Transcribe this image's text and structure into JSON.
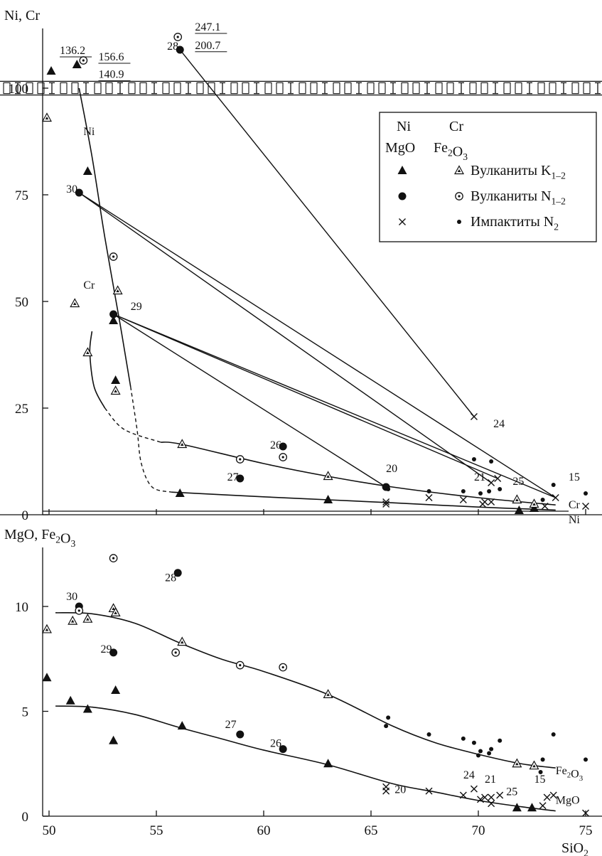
{
  "chart_data": [
    {
      "type": "scatter",
      "ylabel": "Ni, Cr",
      "xlim": [
        49.5,
        75.5
      ],
      "ylim": [
        0,
        110
      ],
      "yticks": [
        0,
        25,
        50,
        75,
        100
      ],
      "grid": false,
      "legend": {
        "placement": "top-right",
        "header_top": [
          "Ni",
          "Cr"
        ],
        "header_bottom": [
          "MgO",
          "Fe2O3"
        ],
        "entries": [
          {
            "label": "Вулканиты K1–2",
            "marker_a": "filled-triangle",
            "marker_b": "open-triangle"
          },
          {
            "label": "Вулканиты N1–2",
            "marker_a": "filled-circle",
            "marker_b": "open-circle"
          },
          {
            "label": "Импактиты N2",
            "marker_a": "cross",
            "marker_b": "small-dot"
          }
        ]
      },
      "series": [
        {
          "marker": "filled-triangle",
          "points": [
            [
              50.1,
              104
            ],
            [
              51.3,
              105.5
            ],
            [
              51.8,
              80.5
            ],
            [
              53.0,
              45.5
            ],
            [
              53.1,
              31.5
            ],
            [
              56.1,
              5
            ],
            [
              63.0,
              3.5
            ],
            [
              71.9,
              1
            ],
            [
              72.6,
              1.5
            ]
          ]
        },
        {
          "marker": "open-triangle",
          "points": [
            [
              49.9,
              93
            ],
            [
              51.2,
              49.5
            ],
            [
              51.8,
              38
            ],
            [
              53.1,
              29
            ],
            [
              53.2,
              52.5
            ],
            [
              56.2,
              16.5
            ],
            [
              63.0,
              9
            ],
            [
              71.8,
              3.5
            ],
            [
              72.6,
              2.5
            ]
          ]
        },
        {
          "marker": "filled-circle",
          "points": [
            [
              51.4,
              75.5
            ],
            [
              53.0,
              47
            ],
            [
              56.1,
              109
            ],
            [
              58.9,
              8.5
            ],
            [
              60.9,
              16
            ],
            [
              65.7,
              6.5
            ]
          ]
        },
        {
          "marker": "open-circle",
          "points": [
            [
              51.6,
              106.5
            ],
            [
              53.0,
              60.5
            ],
            [
              56.0,
              112
            ],
            [
              58.9,
              13
            ],
            [
              60.9,
              13.5
            ]
          ]
        },
        {
          "marker": "cross",
          "points": [
            [
              65.7,
              2.5
            ],
            [
              65.7,
              3
            ],
            [
              67.7,
              4
            ],
            [
              69.3,
              3.5
            ],
            [
              69.8,
              23
            ],
            [
              70.2,
              2.5
            ],
            [
              70.3,
              3
            ],
            [
              70.6,
              3
            ],
            [
              70.6,
              7.5
            ],
            [
              70.9,
              8.5
            ],
            [
              73.1,
              2
            ],
            [
              73.6,
              4
            ],
            [
              75.0,
              2
            ]
          ]
        },
        {
          "marker": "small-dot",
          "points": [
            [
              65.8,
              6
            ],
            [
              67.7,
              5.5
            ],
            [
              69.3,
              5.5
            ],
            [
              69.8,
              13
            ],
            [
              70.1,
              5
            ],
            [
              70.5,
              5.5
            ],
            [
              70.6,
              12.5
            ],
            [
              71.0,
              6
            ],
            [
              73.0,
              3.5
            ],
            [
              73.5,
              7
            ],
            [
              75.0,
              5
            ]
          ]
        }
      ],
      "trend_lines": [
        {
          "name": "Ni",
          "points": [
            [
              51.4,
              100
            ],
            [
              52.0,
              84
            ],
            [
              52.6,
              65
            ],
            [
              53.3,
              45
            ],
            [
              53.8,
              30
            ]
          ]
        },
        {
          "name": "Cr",
          "points": [
            [
              52.0,
              43
            ],
            [
              51.9,
              38
            ],
            [
              52.1,
              30
            ],
            [
              52.6,
              25
            ]
          ]
        },
        {
          "name": "Cr",
          "dashed": true,
          "points": [
            [
              52.6,
              25
            ],
            [
              53.5,
              20
            ],
            [
              55.2,
              17
            ]
          ]
        },
        {
          "name": "Ni",
          "dashed": true,
          "points": [
            [
              53.8,
              30
            ],
            [
              54.1,
              20
            ],
            [
              54.3,
              12
            ],
            [
              54.8,
              6.5
            ],
            [
              55.7,
              5.3
            ]
          ]
        },
        {
          "name": "Cr",
          "points": [
            [
              55.2,
              17
            ],
            [
              56.2,
              16.5
            ],
            [
              60,
              12
            ],
            [
              63,
              9
            ],
            [
              66,
              6.5
            ],
            [
              70,
              4
            ],
            [
              73.6,
              2.3
            ]
          ]
        },
        {
          "name": "Ni",
          "points": [
            [
              55.7,
              5.3
            ],
            [
              60,
              4.2
            ],
            [
              63,
              3.5
            ],
            [
              66,
              2.8
            ],
            [
              70,
              1.8
            ],
            [
              73.6,
              1.1
            ]
          ]
        }
      ],
      "tie_lines": [
        [
          [
            56.1,
            109
          ],
          [
            69.8,
            23
          ]
        ],
        [
          [
            51.4,
            75.5
          ],
          [
            70.6,
            7.5
          ]
        ],
        [
          [
            51.4,
            75.5
          ],
          [
            73.6,
            4
          ]
        ],
        [
          [
            53.0,
            47
          ],
          [
            65.7,
            6.5
          ]
        ],
        [
          [
            53.0,
            47
          ],
          [
            70.9,
            8.5
          ]
        ],
        [
          [
            53.0,
            47
          ],
          [
            73.6,
            4
          ]
        ]
      ],
      "annotations": [
        {
          "text": "136.2",
          "x": 50.5,
          "y": 108,
          "underline": true
        },
        {
          "text": "156.6",
          "x": 52.3,
          "y": 106.5,
          "underline": true
        },
        {
          "text": "140.9",
          "x": 52.3,
          "y": 102.4,
          "underline": true
        },
        {
          "text": "247.1",
          "x": 56.8,
          "y": 113.5,
          "underline": true
        },
        {
          "text": "200.7",
          "x": 56.8,
          "y": 109.2,
          "underline": true
        },
        {
          "text": "28",
          "x": 55.5,
          "y": 109
        },
        {
          "text": "30",
          "x": 50.8,
          "y": 75.5
        },
        {
          "text": "29",
          "x": 53.8,
          "y": 48
        },
        {
          "text": "Ni",
          "x": 51.6,
          "y": 89
        },
        {
          "text": "Cr",
          "x": 51.6,
          "y": 53
        },
        {
          "text": "26",
          "x": 60.3,
          "y": 15.5
        },
        {
          "text": "27",
          "x": 58.3,
          "y": 8
        },
        {
          "text": "20",
          "x": 65.7,
          "y": 10
        },
        {
          "text": "21",
          "x": 69.8,
          "y": 8
        },
        {
          "text": "25",
          "x": 71.6,
          "y": 7
        },
        {
          "text": "24",
          "x": 70.7,
          "y": 20.5
        },
        {
          "text": "15",
          "x": 74.2,
          "y": 8
        },
        {
          "text": "Cr",
          "x": 74.2,
          "y": 1.5
        },
        {
          "text": "Ni",
          "x": 74.2,
          "y": -2
        }
      ]
    },
    {
      "type": "scatter",
      "ylabel": "MgO, Fe2O3",
      "xlabel": "SiO2",
      "xlim": [
        49.5,
        75.5
      ],
      "ylim": [
        0,
        13
      ],
      "xticks": [
        50,
        55,
        60,
        65,
        70,
        75
      ],
      "yticks": [
        0,
        5,
        10
      ],
      "grid": false,
      "series": [
        {
          "marker": "filled-triangle",
          "points": [
            [
              49.9,
              6.6
            ],
            [
              51.0,
              5.5
            ],
            [
              51.8,
              5.1
            ],
            [
              53.0,
              3.6
            ],
            [
              53.1,
              6.0
            ],
            [
              56.2,
              4.3
            ],
            [
              63.0,
              2.5
            ],
            [
              71.8,
              0.4
            ],
            [
              72.5,
              0.4
            ]
          ]
        },
        {
          "marker": "open-triangle",
          "points": [
            [
              49.9,
              8.9
            ],
            [
              51.1,
              9.3
            ],
            [
              51.8,
              9.4
            ],
            [
              53.0,
              9.9
            ],
            [
              53.1,
              9.7
            ],
            [
              56.2,
              8.3
            ],
            [
              63.0,
              5.8
            ],
            [
              71.8,
              2.5
            ],
            [
              72.6,
              2.4
            ]
          ]
        },
        {
          "marker": "filled-circle",
          "points": [
            [
              51.4,
              10.0
            ],
            [
              53.0,
              7.8
            ],
            [
              56.0,
              11.6
            ],
            [
              58.9,
              3.9
            ],
            [
              60.9,
              3.2
            ]
          ]
        },
        {
          "marker": "open-circle",
          "points": [
            [
              51.4,
              9.8
            ],
            [
              53.0,
              12.3
            ],
            [
              55.9,
              7.8
            ],
            [
              58.9,
              7.2
            ],
            [
              60.9,
              7.1
            ]
          ]
        },
        {
          "marker": "cross",
          "points": [
            [
              65.7,
              1.2
            ],
            [
              65.7,
              1.4
            ],
            [
              67.7,
              1.2
            ],
            [
              69.3,
              1.0
            ],
            [
              69.8,
              1.3
            ],
            [
              70.1,
              0.8
            ],
            [
              70.3,
              0.9
            ],
            [
              70.6,
              0.6
            ],
            [
              70.6,
              0.9
            ],
            [
              71.0,
              1.0
            ],
            [
              73.0,
              0.5
            ],
            [
              73.2,
              0.9
            ],
            [
              73.5,
              1.0
            ],
            [
              75.0,
              0.15
            ]
          ]
        },
        {
          "marker": "small-dot",
          "points": [
            [
              65.7,
              4.3
            ],
            [
              65.8,
              4.7
            ],
            [
              67.7,
              3.9
            ],
            [
              69.3,
              3.7
            ],
            [
              69.8,
              3.5
            ],
            [
              70.0,
              2.9
            ],
            [
              70.1,
              3.1
            ],
            [
              70.5,
              3.0
            ],
            [
              70.6,
              3.2
            ],
            [
              71.0,
              3.6
            ],
            [
              72.9,
              2.1
            ],
            [
              73.0,
              2.7
            ],
            [
              73.5,
              3.9
            ],
            [
              75.0,
              2.7
            ]
          ]
        }
      ],
      "trend_lines": [
        {
          "name": "Fe2O3",
          "points": [
            [
              50.3,
              9.7
            ],
            [
              52,
              9.65
            ],
            [
              54,
              9.2
            ],
            [
              56,
              8.3
            ],
            [
              58,
              7.5
            ],
            [
              60,
              6.9
            ],
            [
              63,
              5.8
            ],
            [
              66,
              4.3
            ],
            [
              68,
              3.5
            ],
            [
              70,
              2.95
            ],
            [
              72,
              2.5
            ],
            [
              73.6,
              2.3
            ]
          ]
        },
        {
          "name": "MgO",
          "points": [
            [
              50.3,
              5.25
            ],
            [
              52,
              5.2
            ],
            [
              54,
              4.85
            ],
            [
              56,
              4.25
            ],
            [
              58,
              3.7
            ],
            [
              60,
              3.15
            ],
            [
              63,
              2.45
            ],
            [
              66,
              1.55
            ],
            [
              68,
              1.15
            ],
            [
              70,
              0.75
            ],
            [
              72,
              0.45
            ],
            [
              73.6,
              0.25
            ]
          ]
        }
      ],
      "annotations": [
        {
          "text": "30",
          "x": 50.8,
          "y": 10.3
        },
        {
          "text": "28",
          "x": 55.4,
          "y": 11.2
        },
        {
          "text": "29",
          "x": 52.4,
          "y": 7.8
        },
        {
          "text": "27",
          "x": 58.2,
          "y": 4.2
        },
        {
          "text": "26",
          "x": 60.3,
          "y": 3.3
        },
        {
          "text": "20",
          "x": 66.1,
          "y": 1.1
        },
        {
          "text": "24",
          "x": 69.3,
          "y": 1.8
        },
        {
          "text": "21",
          "x": 70.3,
          "y": 1.6
        },
        {
          "text": "25",
          "x": 71.3,
          "y": 1.0
        },
        {
          "text": "15",
          "x": 72.6,
          "y": 1.6
        },
        {
          "text": "Fe2O3",
          "x": 73.6,
          "y": 2.0
        },
        {
          "text": "MgO",
          "x": 73.6,
          "y": 0.6
        }
      ]
    }
  ]
}
